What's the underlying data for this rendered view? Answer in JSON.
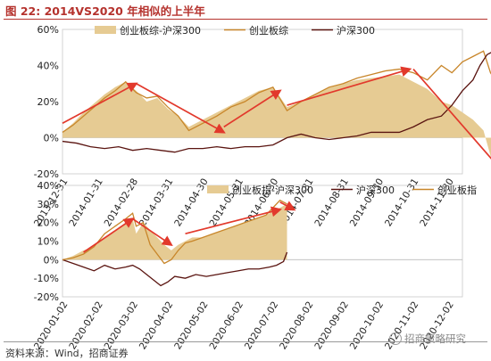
{
  "figure": {
    "title": "图 22:  2014VS2020 年相似的上半年",
    "source": "资料来源：Wind，招商证券",
    "watermark": "招商策略研究",
    "colors": {
      "area": "#e6cb93",
      "growth_line": "#c8862a",
      "hs300_line": "#5a1410",
      "arrow": "#e2392c",
      "title": "#b5322d"
    }
  },
  "chart_data": [
    {
      "type": "area",
      "ylim": [
        -20,
        60
      ],
      "yticks": [
        "60%",
        "40%",
        "20%",
        "0%",
        "-20%"
      ],
      "ytick_values": [
        60,
        40,
        20,
        0,
        -20
      ],
      "x_labels": [
        "2013-12-31",
        "2014-01-31",
        "2014-02-28",
        "2014-03-31",
        "2014-04-30",
        "2014-05-31",
        "2014-06-30",
        "2014-07-31",
        "2014-08-31",
        "2014-09-30",
        "2014-10-31",
        "2014-11-30"
      ],
      "legend_position": "top",
      "series": [
        {
          "name": "创业板综-沪深300",
          "kind": "area",
          "x": [
            0,
            0.3,
            0.6,
            0.9,
            1.2,
            1.5,
            1.8,
            2.1,
            2.4,
            2.7,
            3.0,
            3.3,
            3.6,
            4.0,
            4.4,
            4.8,
            5.2,
            5.6,
            6.0,
            6.4,
            6.8,
            7.2,
            7.6,
            8.0,
            8.4,
            8.8,
            9.2,
            9.6,
            10.0,
            10.4,
            10.8,
            11.1,
            11.4,
            11.7,
            12.0,
            12.2,
            12.4,
            12.6
          ],
          "y": [
            3,
            8,
            14,
            19,
            24,
            28,
            31,
            26,
            20,
            22,
            16,
            12,
            6,
            10,
            14,
            18,
            22,
            26,
            28,
            17,
            20,
            24,
            28,
            30,
            32,
            33,
            34,
            35,
            31,
            27,
            20,
            18,
            14,
            10,
            4,
            -10,
            -18,
            -12
          ]
        },
        {
          "name": "创业板综",
          "kind": "line",
          "x": [
            0,
            0.3,
            0.6,
            0.9,
            1.2,
            1.5,
            1.8,
            2.1,
            2.4,
            2.7,
            3.0,
            3.3,
            3.6,
            4.0,
            4.4,
            4.8,
            5.2,
            5.6,
            6.0,
            6.4,
            6.8,
            7.2,
            7.6,
            8.0,
            8.4,
            8.8,
            9.2,
            9.6,
            10.0,
            10.4,
            10.8,
            11.1,
            11.4,
            11.7,
            12.0,
            12.2,
            12.4,
            12.6
          ],
          "y": [
            3,
            7,
            12,
            17,
            22,
            26,
            31,
            25,
            22,
            23,
            17,
            12,
            4,
            8,
            12,
            17,
            20,
            25,
            28,
            15,
            20,
            24,
            28,
            30,
            33,
            35,
            37,
            38,
            36,
            32,
            40,
            36,
            42,
            45,
            48,
            36,
            30,
            25
          ]
        },
        {
          "name": "沪深300",
          "kind": "line",
          "x": [
            0,
            0.4,
            0.8,
            1.2,
            1.6,
            2.0,
            2.4,
            2.8,
            3.2,
            3.6,
            4.0,
            4.4,
            4.8,
            5.2,
            5.6,
            6.0,
            6.4,
            6.8,
            7.2,
            7.6,
            8.0,
            8.4,
            8.8,
            9.2,
            9.6,
            10.0,
            10.4,
            10.8,
            11.1,
            11.4,
            11.7,
            11.9,
            12.1,
            12.3,
            12.5
          ],
          "y": [
            -2,
            -3,
            -5,
            -6,
            -5,
            -7,
            -6,
            -7,
            -8,
            -6,
            -6,
            -5,
            -6,
            -5,
            -5,
            -4,
            0,
            2,
            0,
            -1,
            0,
            1,
            3,
            3,
            3,
            6,
            10,
            12,
            18,
            26,
            32,
            40,
            46,
            48,
            49
          ]
        }
      ],
      "annotations": [
        {
          "type": "arrow",
          "from": [
            0,
            8
          ],
          "to": [
            2.1,
            30
          ]
        },
        {
          "type": "arrow",
          "from": [
            2.1,
            30
          ],
          "to": [
            4.6,
            3
          ]
        },
        {
          "type": "arrow",
          "from": [
            4.6,
            6
          ],
          "to": [
            6.2,
            26
          ]
        },
        {
          "type": "arrow",
          "from": [
            6.4,
            18
          ],
          "to": [
            9.9,
            38
          ]
        },
        {
          "type": "arrow",
          "from": [
            10.0,
            38
          ],
          "to": [
            12.6,
            -20
          ]
        }
      ]
    },
    {
      "type": "area",
      "ylim": [
        -20,
        40
      ],
      "yticks": [
        "40%",
        "30%",
        "20%",
        "10%",
        "0%",
        "-10%",
        "-20%"
      ],
      "ytick_values": [
        40,
        30,
        20,
        10,
        0,
        -10,
        -20
      ],
      "x_labels": [
        "2020-01-02",
        "2020-02-02",
        "2020-03-02",
        "2020-04-02",
        "2020-05-02",
        "2020-06-02",
        "2020-07-02",
        "2020-08-02",
        "2020-09-02",
        "2020-10-02",
        "2020-11-02",
        "2020-12-02"
      ],
      "legend_position": "top",
      "series": [
        {
          "name": "创业板指-沪深300",
          "kind": "area",
          "x": [
            0,
            0.3,
            0.6,
            0.9,
            1.2,
            1.5,
            1.8,
            2.0,
            2.1,
            2.3,
            2.5,
            2.7,
            2.9,
            3.1,
            3.3,
            3.5,
            3.7,
            4.0,
            4.3,
            4.6,
            4.9,
            5.2,
            5.5,
            5.8,
            6.0,
            6.2,
            6.4
          ],
          "y": [
            0,
            2,
            5,
            7,
            12,
            16,
            20,
            22,
            14,
            20,
            16,
            12,
            8,
            5,
            8,
            10,
            12,
            12,
            14,
            16,
            18,
            20,
            22,
            24,
            26,
            28,
            30
          ]
        },
        {
          "name": "沪深300",
          "kind": "line",
          "x": [
            0,
            0.3,
            0.6,
            0.9,
            1.2,
            1.5,
            1.8,
            2.0,
            2.2,
            2.4,
            2.6,
            2.8,
            3.0,
            3.2,
            3.5,
            3.8,
            4.1,
            4.4,
            4.7,
            5.0,
            5.3,
            5.6,
            5.9,
            6.1,
            6.3,
            6.4
          ],
          "y": [
            0,
            -2,
            -4,
            -6,
            -3,
            -5,
            -4,
            -3,
            -5,
            -8,
            -11,
            -14,
            -12,
            -9,
            -10,
            -8,
            -9,
            -8,
            -7,
            -6,
            -5,
            -5,
            -4,
            -3,
            -1,
            4
          ]
        },
        {
          "name": "创业板指",
          "kind": "line",
          "x": [
            0,
            0.3,
            0.6,
            0.9,
            1.2,
            1.5,
            1.8,
            2.0,
            2.1,
            2.3,
            2.5,
            2.7,
            2.9,
            3.1,
            3.3,
            3.5,
            3.7,
            4.0,
            4.3,
            4.6,
            4.9,
            5.2,
            5.5,
            5.8,
            6.0,
            6.2,
            6.4
          ],
          "y": [
            0,
            1,
            3,
            7,
            14,
            18,
            22,
            25,
            18,
            20,
            8,
            3,
            -2,
            0,
            5,
            9,
            10,
            12,
            14,
            16,
            18,
            20,
            22,
            24,
            28,
            32,
            30
          ]
        }
      ],
      "annotations": [
        {
          "type": "arrow",
          "from": [
            0.6,
            4
          ],
          "to": [
            2.0,
            22
          ]
        },
        {
          "type": "arrow",
          "from": [
            2.0,
            22
          ],
          "to": [
            3.1,
            8
          ]
        },
        {
          "type": "arrow",
          "from": [
            3.5,
            14
          ],
          "to": [
            6.2,
            27
          ]
        },
        {
          "type": "arrow",
          "from": [
            6.2,
            31
          ],
          "to": [
            6.6,
            27
          ]
        }
      ]
    }
  ]
}
